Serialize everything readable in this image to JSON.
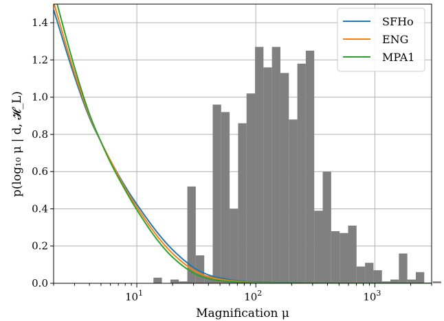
{
  "chart_data": {
    "type": "histogram+line",
    "title": "",
    "xlabel": "Magnification μ",
    "ylabel": "p(log₁₀ μ | d, 𝓗_L)",
    "xscale": "log",
    "xlim": [
      2,
      3000
    ],
    "ylim": [
      0,
      1.5
    ],
    "grid": true,
    "legend_placement": "top-right",
    "x_ticks": [
      {
        "value": 10,
        "base": "10",
        "exp": "1"
      },
      {
        "value": 100,
        "base": "10",
        "exp": "2"
      },
      {
        "value": 1000,
        "base": "10",
        "exp": "3"
      }
    ],
    "y_ticks": [
      "0.0",
      "0.2",
      "0.4",
      "0.6",
      "0.8",
      "1.0",
      "1.2",
      "1.4"
    ],
    "histogram": {
      "color": "#808080",
      "log10_bin_width": 0.0711,
      "bins": [
        {
          "log10_left": 1.14,
          "value": 0.03
        },
        {
          "log10_left": 1.2822,
          "value": 0.02
        },
        {
          "log10_left": 1.3533,
          "value": 0.01
        },
        {
          "log10_left": 1.4244,
          "value": 0.52
        },
        {
          "log10_left": 1.4955,
          "value": 0.15
        },
        {
          "log10_left": 1.5666,
          "value": 0.04
        },
        {
          "log10_left": 1.6377,
          "value": 0.96
        },
        {
          "log10_left": 1.7088,
          "value": 0.92
        },
        {
          "log10_left": 1.7799,
          "value": 0.4
        },
        {
          "log10_left": 1.851,
          "value": 0.86
        },
        {
          "log10_left": 1.9221,
          "value": 1.02
        },
        {
          "log10_left": 1.9932,
          "value": 1.27
        },
        {
          "log10_left": 2.0643,
          "value": 1.16
        },
        {
          "log10_left": 2.1354,
          "value": 1.27
        },
        {
          "log10_left": 2.2065,
          "value": 1.13
        },
        {
          "log10_left": 2.2776,
          "value": 0.88
        },
        {
          "log10_left": 2.3487,
          "value": 1.18
        },
        {
          "log10_left": 2.4198,
          "value": 1.25
        },
        {
          "log10_left": 2.4909,
          "value": 0.39
        },
        {
          "log10_left": 2.562,
          "value": 0.6
        },
        {
          "log10_left": 2.6331,
          "value": 0.28
        },
        {
          "log10_left": 2.7042,
          "value": 0.27
        },
        {
          "log10_left": 2.7753,
          "value": 0.31
        },
        {
          "log10_left": 2.8464,
          "value": 0.09
        },
        {
          "log10_left": 2.9175,
          "value": 0.11
        },
        {
          "log10_left": 2.9886,
          "value": 0.07
        },
        {
          "log10_left": 3.0597,
          "value": 0.01
        },
        {
          "log10_left": 3.1308,
          "value": 0.02
        },
        {
          "log10_left": 3.2019,
          "value": 0.16
        },
        {
          "log10_left": 3.273,
          "value": 0.02
        },
        {
          "log10_left": 3.3441,
          "value": 0.06
        },
        {
          "log10_left": 3.4863,
          "value": 0.01
        },
        {
          "log10_left": 3.6285,
          "value": 0.02
        }
      ]
    },
    "series": [
      {
        "name": "SFHo",
        "color": "#1f77b4",
        "x": [
          2,
          3,
          4,
          5,
          6,
          8,
          10,
          15,
          20,
          30,
          40,
          60,
          80,
          100,
          150,
          200,
          300,
          500,
          1000,
          3000
        ],
        "y": [
          1.47,
          1.11,
          0.89,
          0.76,
          0.66,
          0.52,
          0.425,
          0.27,
          0.18,
          0.085,
          0.045,
          0.02,
          0.01,
          0.007,
          0.004,
          0.003,
          0.002,
          0.001,
          0.0005,
          0.0
        ]
      },
      {
        "name": "ENG",
        "color": "#ff7f0e",
        "x": [
          2,
          3,
          4,
          5,
          6,
          8,
          10,
          15,
          20,
          30,
          40,
          60,
          80,
          100,
          150,
          200,
          300,
          500,
          1000,
          3000
        ],
        "y": [
          1.51,
          1.13,
          0.9,
          0.76,
          0.66,
          0.51,
          0.41,
          0.25,
          0.16,
          0.07,
          0.035,
          0.014,
          0.007,
          0.004,
          0.002,
          0.001,
          0.0008,
          0.0004,
          0.0002,
          0.0
        ]
      },
      {
        "name": "MPA1",
        "color": "#2ca02c",
        "x": [
          2,
          3,
          4,
          5,
          6,
          8,
          10,
          15,
          20,
          30,
          40,
          60,
          80,
          100,
          150,
          200,
          300,
          500,
          1000,
          3000
        ],
        "y": [
          1.57,
          1.16,
          0.91,
          0.76,
          0.65,
          0.5,
          0.395,
          0.23,
          0.14,
          0.055,
          0.025,
          0.009,
          0.004,
          0.002,
          0.001,
          0.0007,
          0.0004,
          0.0002,
          0.0001,
          0.0
        ]
      }
    ]
  }
}
